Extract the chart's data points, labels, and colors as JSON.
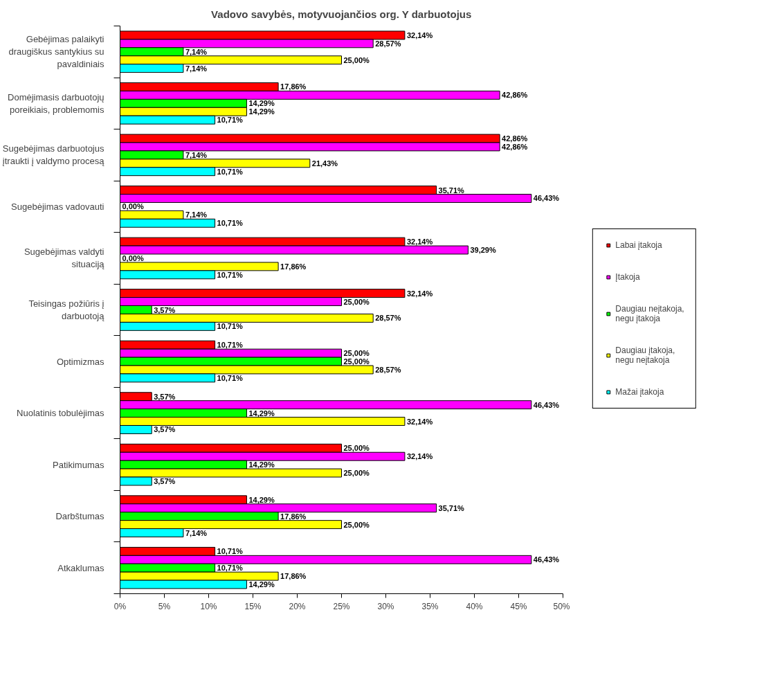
{
  "chart_data": {
    "type": "bar",
    "orientation": "horizontal",
    "title": "Vadovo savybės, motyvuojančios org. Y darbuotojus",
    "categories": [
      "Gebėjimas palaikyti draugiškus santykius su pavaldiniais",
      "Domėjimasis darbuotojų poreikiais, problemomis",
      "Sugebėjimas darbuotojus įtraukti į valdymo procesą",
      "Sugebėjimas vadovauti",
      "Sugebėjimas valdyti situaciją",
      "Teisingas požiūris į darbuotoją",
      "Optimizmas",
      "Nuolatinis tobulėjimas",
      "Patikimumas",
      "Darbštumas",
      "Atkaklumas"
    ],
    "series": [
      {
        "name": "Labai įtakoja",
        "color": "#ff0000",
        "values": [
          32.14,
          17.86,
          42.86,
          35.71,
          32.14,
          32.14,
          10.71,
          3.57,
          25.0,
          14.29,
          10.71
        ],
        "value_labels": [
          "32,14%",
          "17,86%",
          "42,86%",
          "35,71%",
          "32,14%",
          "32,14%",
          "10,71%",
          "3,57%",
          "25,00%",
          "14,29%",
          "10,71%"
        ]
      },
      {
        "name": "Įtakoja",
        "color": "#ff00ff",
        "values": [
          28.57,
          42.86,
          42.86,
          46.43,
          39.29,
          25.0,
          25.0,
          46.43,
          32.14,
          35.71,
          46.43
        ],
        "value_labels": [
          "28,57%",
          "42,86%",
          "42,86%",
          "46,43%",
          "39,29%",
          "25,00%",
          "25,00%",
          "46,43%",
          "32,14%",
          "35,71%",
          "46,43%"
        ]
      },
      {
        "name": "Daugiau neįtakoja, negu įtakoja",
        "color": "#00ff00",
        "values": [
          7.14,
          14.29,
          7.14,
          0.0,
          0.0,
          3.57,
          25.0,
          14.29,
          14.29,
          17.86,
          10.71
        ],
        "value_labels": [
          "7,14%",
          "14,29%",
          "7,14%",
          "0,00%",
          "0,00%",
          "3,57%",
          "25,00%",
          "14,29%",
          "14,29%",
          "17,86%",
          "10,71%"
        ]
      },
      {
        "name": "Daugiau įtakoja, negu neįtakoja",
        "color": "#ffff00",
        "values": [
          25.0,
          14.29,
          21.43,
          7.14,
          17.86,
          28.57,
          28.57,
          32.14,
          25.0,
          25.0,
          17.86
        ],
        "value_labels": [
          "25,00%",
          "14,29%",
          "21,43%",
          "7,14%",
          "17,86%",
          "28,57%",
          "28,57%",
          "32,14%",
          "25,00%",
          "25,00%",
          "17,86%"
        ]
      },
      {
        "name": "Mažai įtakoja",
        "color": "#00ffff",
        "values": [
          7.14,
          10.71,
          10.71,
          10.71,
          10.71,
          10.71,
          10.71,
          3.57,
          3.57,
          7.14,
          14.29
        ],
        "value_labels": [
          "7,14%",
          "10,71%",
          "10,71%",
          "10,71%",
          "10,71%",
          "10,71%",
          "10,71%",
          "3,57%",
          "3,57%",
          "7,14%",
          "14,29%"
        ]
      }
    ],
    "xlim": [
      0,
      50
    ],
    "xticks": [
      {
        "value": 0,
        "label": "0%"
      },
      {
        "value": 5,
        "label": "5%"
      },
      {
        "value": 10,
        "label": "10%"
      },
      {
        "value": 15,
        "label": "15%"
      },
      {
        "value": 20,
        "label": "20%"
      },
      {
        "value": 25,
        "label": "25%"
      },
      {
        "value": 30,
        "label": "30%"
      },
      {
        "value": 35,
        "label": "35%"
      },
      {
        "value": 40,
        "label": "40%"
      },
      {
        "value": 45,
        "label": "45%"
      },
      {
        "value": 50,
        "label": "50%"
      }
    ],
    "grid": false,
    "legend": "right"
  }
}
